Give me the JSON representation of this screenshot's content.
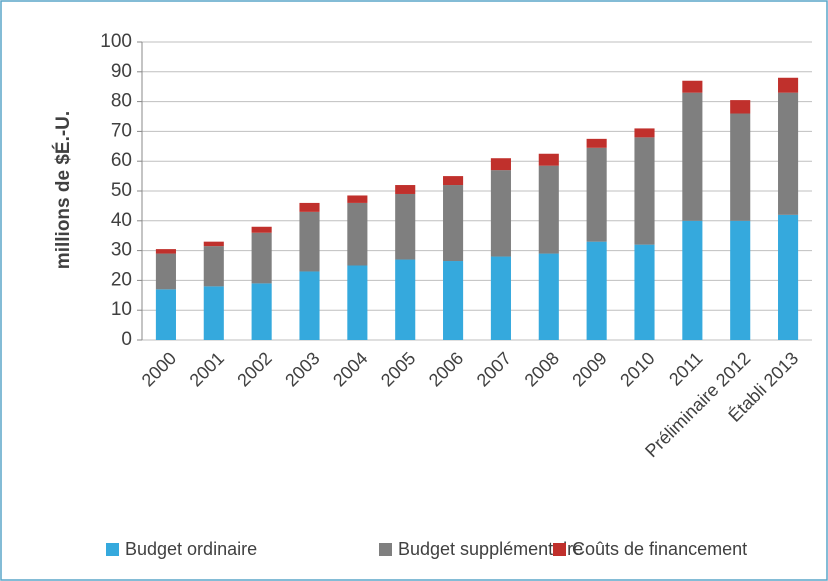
{
  "chart_data": {
    "type": "stacked_bar",
    "y_axis_label": "millions de $É.-U.",
    "categories": [
      "2000",
      "2001",
      "2002",
      "2003",
      "2004",
      "2005",
      "2006",
      "2007",
      "2008",
      "2009",
      "2010",
      "2011",
      "Préliminaire 2012",
      "Établi 2013"
    ],
    "series": [
      {
        "name": "Budget ordinaire",
        "color": "#35a9dd",
        "values": [
          17,
          18,
          19,
          23,
          25,
          27,
          26.5,
          28,
          29,
          33,
          32,
          40,
          40,
          42
        ]
      },
      {
        "name": "Budget supplémentaire",
        "color": "#7f7f7f",
        "values": [
          12,
          13.5,
          17,
          20,
          21,
          22,
          25.5,
          29,
          29.5,
          31.5,
          36,
          43,
          36,
          41
        ]
      },
      {
        "name": "Coûts de financement",
        "color": "#c0302c",
        "values": [
          1.5,
          1.5,
          2,
          3,
          2.5,
          3,
          3,
          4,
          4,
          3,
          3,
          4,
          4.5,
          5
        ]
      }
    ],
    "ylim": [
      0,
      100
    ],
    "yticks": [
      0,
      10,
      20,
      30,
      40,
      50,
      60,
      70,
      80,
      90,
      100
    ],
    "grid": true,
    "legend": "bottom"
  }
}
